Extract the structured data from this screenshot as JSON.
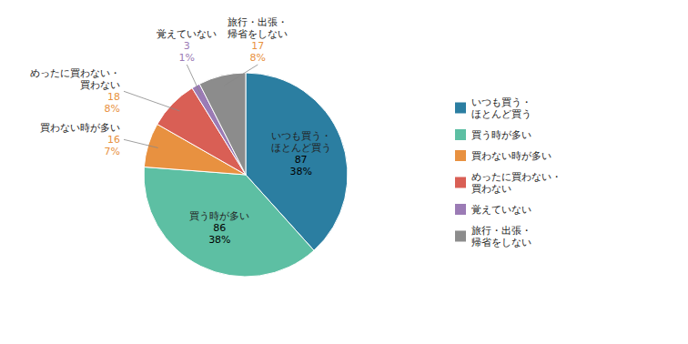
{
  "chart_data": {
    "type": "pie",
    "categories": [
      "いつも買う・\nほとんど買う",
      "買う時が多い",
      "買わない時が多い",
      "めったに買わない・\n買わない",
      "覚えていない",
      "旅行・出張・\n帰省をしない"
    ],
    "values": [
      87,
      86,
      16,
      18,
      3,
      17
    ],
    "percentages": [
      38,
      38,
      7,
      8,
      1,
      8
    ],
    "percentage_labels": [
      "38%",
      "38%",
      "7%",
      "8%",
      "1%",
      "8%"
    ],
    "colors": [
      "#2b7ea1",
      "#5dbfa3",
      "#e89140",
      "#d95f55",
      "#9b7bb5",
      "#8c8c8c"
    ],
    "data_label_colors": [
      "#000000",
      "#000000",
      "#e89140",
      "#e89140",
      "#9b7bb5",
      "#e89140"
    ],
    "data_labels": true,
    "legend": "right"
  }
}
